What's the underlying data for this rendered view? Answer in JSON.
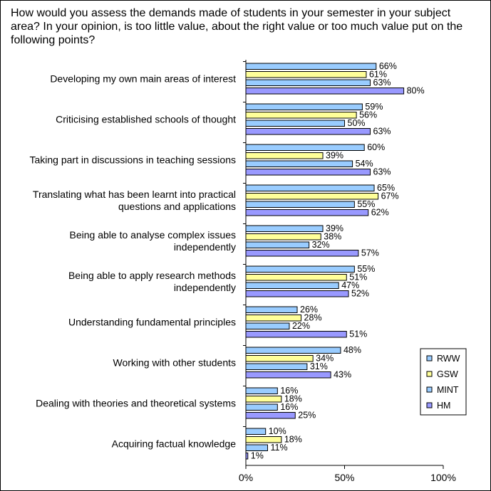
{
  "chart_data": {
    "type": "bar",
    "orientation": "horizontal",
    "title": "How would you assess the demands made of students in your semester in your subject area? In your opinion,  is too little value, about the right value or too much value put on the following points?",
    "categories": [
      [
        "Developing my own main areas of interest"
      ],
      [
        "Criticising established schools of thought"
      ],
      [
        "Taking part in discussions in teaching sessions"
      ],
      [
        "Translating what has been learnt into practical",
        "questions and applications"
      ],
      [
        "Being able to analyse complex issues",
        "independently"
      ],
      [
        "Being able to apply research methods",
        "independently"
      ],
      [
        "Understanding fundamental principles"
      ],
      [
        "Working with other students"
      ],
      [
        "Dealing with theories and theoretical systems"
      ],
      [
        "Acquiring factual knowledge"
      ]
    ],
    "series": [
      {
        "name": "RWW",
        "color": "#99CCFF",
        "values": [
          66,
          59,
          60,
          65,
          39,
          55,
          26,
          48,
          16,
          10
        ]
      },
      {
        "name": "GSW",
        "color": "#FFFF99",
        "values": [
          61,
          56,
          39,
          67,
          38,
          51,
          28,
          34,
          18,
          18
        ]
      },
      {
        "name": "MINT",
        "color": "#99CCFF",
        "values": [
          63,
          50,
          54,
          55,
          32,
          47,
          22,
          31,
          16,
          11
        ]
      },
      {
        "name": "HM",
        "color": "#9999FF",
        "values": [
          80,
          63,
          63,
          62,
          57,
          52,
          51,
          43,
          25,
          1
        ]
      }
    ],
    "value_suffix": "%",
    "x_ticks": [
      "0%",
      "50%",
      "100%"
    ],
    "xlim": [
      0,
      100
    ],
    "grid": false,
    "legend_position": "right"
  }
}
